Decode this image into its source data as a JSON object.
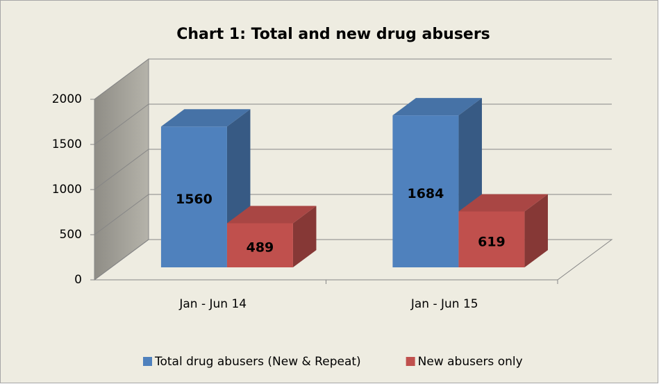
{
  "chart_data": {
    "type": "bar3d",
    "title": "Chart 1: Total and new drug abusers",
    "categories": [
      "Jan - Jun 14",
      "Jan - Jun 15"
    ],
    "series": [
      {
        "name": "Total drug abusers (New & Repeat)",
        "color": "#4f81bd",
        "values": [
          1560,
          1684
        ]
      },
      {
        "name": "New abusers only",
        "color": "#c0504d",
        "values": [
          489,
          619
        ]
      }
    ],
    "ylim": [
      0,
      2000
    ],
    "yticks": [
      0,
      500,
      1000,
      1500,
      2000
    ],
    "grid": true,
    "legend": "bottom"
  }
}
